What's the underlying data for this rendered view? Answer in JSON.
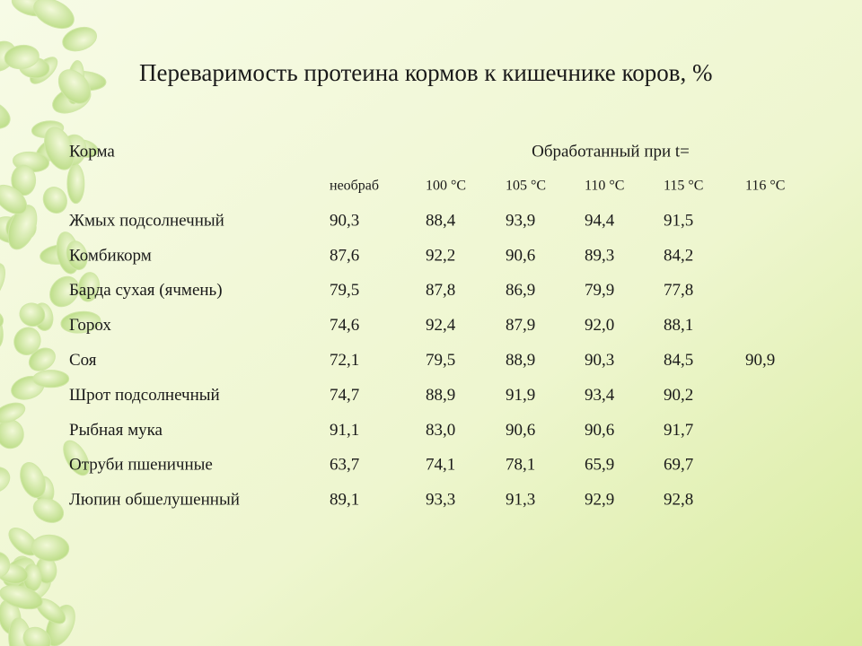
{
  "title": "Переваримость протеина кормов к кишечнике коров, %",
  "table": {
    "header": {
      "feed": "Корма",
      "treated": "Обработанный при t="
    },
    "columns": [
      "необраб",
      "100 °С",
      "105 °С",
      "110 °С",
      "115 °С",
      "116 °С"
    ],
    "rows": [
      [
        "Жмых подсолнечный",
        "90,3",
        "88,4",
        "93,9",
        "94,4",
        "91,5"
      ],
      [
        "Комбикорм",
        "87,6",
        "92,2",
        "90,6",
        "89,3",
        "84,2"
      ],
      [
        "Барда сухая (ячмень)",
        "79,5",
        "87,8",
        "86,9",
        "79,9",
        "77,8"
      ],
      [
        "Горох",
        "74,6",
        "92,4",
        "87,9",
        "92,0",
        "88,1"
      ],
      [
        "Соя",
        "72,1",
        "79,5",
        "88,9",
        "90,3",
        "84,5",
        "90,9"
      ],
      [
        "Шрот подсолнечный",
        "74,7",
        "88,9",
        "91,9",
        "93,4",
        "90,2"
      ],
      [
        "Рыбная мука",
        "91,1",
        "83,0",
        "90,6",
        "90,6",
        "91,7"
      ],
      [
        "Отруби пшеничные",
        "63,7",
        "74,1",
        "78,1",
        "65,9",
        "69,7"
      ],
      [
        "Люпин обшелушенный",
        "89,1",
        "93,3",
        "91,3",
        "92,9",
        "92,8"
      ]
    ]
  }
}
